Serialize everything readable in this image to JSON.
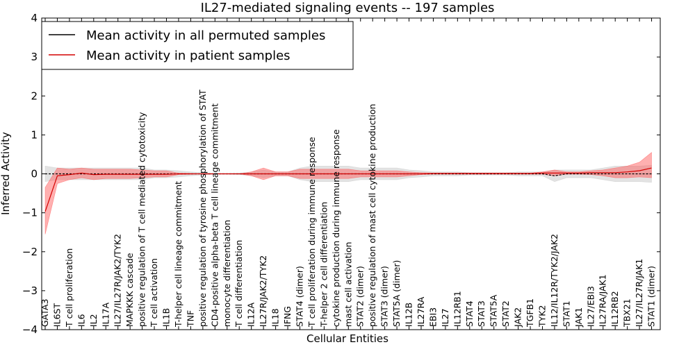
{
  "chart_data": {
    "type": "line",
    "title": "IL27-mediated signaling events -- 197 samples",
    "xlabel": "Cellular Entities",
    "ylabel": "Inferred Activity",
    "ylim": [
      -4,
      4
    ],
    "yticks": [
      -4,
      -3,
      -2,
      -1,
      0,
      1,
      2,
      3,
      4
    ],
    "grid": false,
    "legend_position": "top-left",
    "colors": {
      "permuted_line": "#000000",
      "permuted_band": "#c8c8c8",
      "patient_line": "#d40000",
      "patient_band": "#ff5050"
    },
    "categories": [
      "GATA3",
      "IL6ST",
      "T cell proliferation",
      "IL6",
      "IL2",
      "IL17A",
      "IL27/IL27R/JAK2/TYK2",
      "MAPKKK cascade",
      "positive regulation of T cell mediated cytotoxicity",
      "T cell activation",
      "IL1B",
      "T-helper cell lineage commitment",
      "TNF",
      "positive regulation of tyrosine phosphorylation of STAT",
      "CD4-positive alpha-beta T cell lineage commitment",
      "monocyte differentiation",
      "T cell differentiation",
      "IL12A",
      "IL27R/JAK2/TYK2",
      "IL18",
      "IFNG",
      "STAT4 (dimer)",
      "T cell proliferation during immune response",
      "T-helper 2 cell differentiation",
      "cytokine production during immune response",
      "mast cell activation",
      "STAT2 (dimer)",
      "positive regulation of mast cell cytokine production",
      "STAT3 (dimer)",
      "STAT5A (dimer)",
      "IL12B",
      "IL27RA",
      "EBI3",
      "IL27",
      "IL12RB1",
      "STAT4",
      "STAT3",
      "STAT5A",
      "STAT2",
      "JAK2",
      "TGFB1",
      "TYK2",
      "IL12/IL12R/TYK2/JAK2",
      "STAT1",
      "JAK1",
      "IL27/EBI3",
      "IL27RA/JAK1",
      "IL12RB2",
      "TBX21",
      "IL27/IL27R/JAK1",
      "STAT1 (dimer)"
    ],
    "series": [
      {
        "name": "Mean activity in all permuted samples",
        "values": [
          0,
          0,
          0,
          0,
          0,
          0,
          0,
          0,
          0,
          0,
          0,
          0,
          0,
          0,
          0,
          0,
          0,
          0,
          0,
          0,
          0,
          0,
          0,
          0,
          0,
          0,
          0,
          0,
          0,
          0,
          0,
          0,
          0,
          0,
          0,
          0,
          0,
          0,
          0,
          0,
          0,
          0,
          -0.05,
          0,
          0,
          0,
          0,
          0,
          0,
          0,
          0
        ],
        "lower": [
          -0.2,
          -0.15,
          -0.15,
          -0.15,
          -0.15,
          -0.15,
          -0.15,
          -0.15,
          -0.15,
          -0.1,
          -0.1,
          -0.08,
          -0.05,
          -0.03,
          -0.01,
          -0.01,
          -0.02,
          -0.05,
          -0.1,
          -0.05,
          -0.05,
          -0.15,
          -0.2,
          -0.2,
          -0.2,
          -0.2,
          -0.15,
          -0.15,
          -0.15,
          -0.15,
          -0.1,
          -0.08,
          -0.05,
          -0.05,
          -0.05,
          -0.03,
          -0.03,
          -0.03,
          -0.03,
          -0.05,
          -0.05,
          -0.05,
          -0.2,
          -0.1,
          -0.1,
          -0.1,
          -0.15,
          -0.2,
          -0.2,
          -0.2,
          -0.22
        ],
        "upper": [
          0.2,
          0.15,
          0.15,
          0.15,
          0.15,
          0.15,
          0.15,
          0.15,
          0.15,
          0.1,
          0.1,
          0.08,
          0.05,
          0.03,
          0.01,
          0.01,
          0.02,
          0.05,
          0.1,
          0.05,
          0.05,
          0.15,
          0.2,
          0.2,
          0.2,
          0.2,
          0.15,
          0.15,
          0.15,
          0.15,
          0.1,
          0.08,
          0.05,
          0.05,
          0.05,
          0.03,
          0.03,
          0.03,
          0.03,
          0.05,
          0.05,
          0.05,
          0.1,
          0.1,
          0.1,
          0.1,
          0.15,
          0.2,
          0.2,
          0.2,
          0.22
        ]
      },
      {
        "name": "Mean activity in patient samples",
        "values": [
          -0.97,
          -0.05,
          -0.02,
          0.02,
          -0.02,
          -0.01,
          -0.01,
          -0.01,
          -0.01,
          -0.01,
          -0.01,
          0,
          0,
          0,
          0,
          0,
          0,
          0,
          0,
          0,
          0,
          0,
          0,
          0,
          0,
          0,
          0,
          0,
          0,
          0,
          0,
          0,
          0.01,
          0.01,
          0.01,
          0.01,
          0.01,
          0.01,
          0.01,
          0.01,
          0.01,
          0.02,
          0.02,
          0.02,
          0.02,
          0.03,
          0.03,
          0.03,
          0.05,
          0.08,
          0.15
        ],
        "lower": [
          -1.55,
          -0.25,
          -0.15,
          -0.1,
          -0.15,
          -0.12,
          -0.12,
          -0.12,
          -0.1,
          -0.08,
          -0.08,
          -0.02,
          -0.01,
          0,
          0,
          0,
          0,
          -0.05,
          -0.15,
          -0.05,
          -0.05,
          -0.12,
          -0.12,
          -0.12,
          -0.12,
          -0.12,
          -0.08,
          -0.08,
          -0.08,
          -0.08,
          -0.05,
          -0.02,
          -0.01,
          -0.01,
          -0.01,
          -0.01,
          -0.01,
          -0.01,
          -0.01,
          -0.01,
          -0.01,
          -0.01,
          -0.05,
          -0.01,
          -0.01,
          -0.02,
          -0.05,
          -0.1,
          -0.1,
          -0.08,
          -0.1
        ],
        "upper": [
          -0.35,
          0.15,
          0.12,
          0.15,
          0.12,
          0.12,
          0.12,
          0.12,
          0.1,
          0.08,
          0.08,
          0.02,
          0.01,
          0,
          0,
          0,
          0,
          0.05,
          0.15,
          0.05,
          0.05,
          0.12,
          0.12,
          0.12,
          0.12,
          0.12,
          0.08,
          0.08,
          0.08,
          0.08,
          0.05,
          0.03,
          0.02,
          0.02,
          0.02,
          0.02,
          0.02,
          0.02,
          0.02,
          0.02,
          0.02,
          0.05,
          0.1,
          0.05,
          0.05,
          0.08,
          0.1,
          0.15,
          0.2,
          0.3,
          0.55
        ]
      }
    ]
  }
}
